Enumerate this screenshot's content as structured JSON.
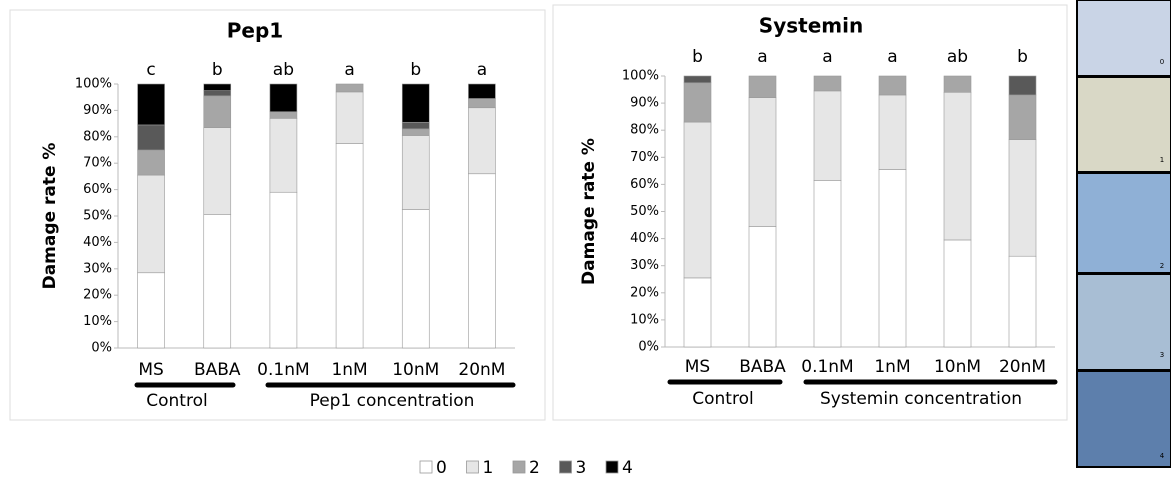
{
  "chart_data": [
    {
      "type": "stacked_bar",
      "title": "Pep1",
      "y_label": "Damage rate %",
      "categories": [
        "MS",
        "BABA",
        "0.1nM",
        "1nM",
        "10nM",
        "20nM"
      ],
      "annotations": [
        "c",
        "b",
        "ab",
        "a",
        "b",
        "a"
      ],
      "group_labels": [
        "Control",
        "Pep1 concentration"
      ],
      "series": [
        {
          "name": "0",
          "color": "#ffffff",
          "values": [
            28.5,
            50.5,
            59,
            77.5,
            52.5,
            66
          ]
        },
        {
          "name": "1",
          "color": "#e6e6e6",
          "values": [
            37,
            33,
            28,
            19.5,
            28,
            25
          ]
        },
        {
          "name": "2",
          "color": "#a6a6a6",
          "values": [
            9.5,
            12,
            2.5,
            3,
            2.5,
            3.5
          ]
        },
        {
          "name": "3",
          "color": "#595959",
          "values": [
            9.5,
            2,
            0,
            0,
            2.5,
            0
          ]
        },
        {
          "name": "4",
          "color": "#000000",
          "values": [
            15.5,
            2.5,
            10.5,
            0,
            14.5,
            5.5
          ]
        }
      ],
      "ylim": [
        0,
        100
      ],
      "yticks": [
        {
          "value": 0,
          "label": "0%"
        },
        {
          "value": 10,
          "label": "10%"
        },
        {
          "value": 20,
          "label": "20%"
        },
        {
          "value": 30,
          "label": "30%"
        },
        {
          "value": 40,
          "label": "40%"
        },
        {
          "value": 50,
          "label": "50%"
        },
        {
          "value": 60,
          "label": "60%"
        },
        {
          "value": 70,
          "label": "70%"
        },
        {
          "value": 80,
          "label": "80%"
        },
        {
          "value": 90,
          "label": "90%"
        },
        {
          "value": 100,
          "label": "100%"
        }
      ]
    },
    {
      "type": "stacked_bar",
      "title": "Systemin",
      "y_label": "Damage rate %",
      "categories": [
        "MS",
        "BABA",
        "0.1nM",
        "1nM",
        "10nM",
        "20nM"
      ],
      "annotations": [
        "b",
        "a",
        "a",
        "a",
        "ab",
        "b"
      ],
      "group_labels": [
        "Control",
        "Systemin concentration"
      ],
      "series": [
        {
          "name": "0",
          "color": "#ffffff",
          "values": [
            25.5,
            44.5,
            61.5,
            65.5,
            39.5,
            33.5
          ]
        },
        {
          "name": "1",
          "color": "#e6e6e6",
          "values": [
            57.5,
            47.5,
            33,
            27.5,
            54.5,
            43
          ]
        },
        {
          "name": "2",
          "color": "#a6a6a6",
          "values": [
            14.5,
            8,
            5.5,
            7,
            6,
            16.5
          ]
        },
        {
          "name": "3",
          "color": "#595959",
          "values": [
            2.5,
            0,
            0,
            0,
            0,
            7
          ]
        },
        {
          "name": "4",
          "color": "#000000",
          "values": [
            0,
            0,
            0,
            0,
            0,
            0
          ]
        }
      ],
      "ylim": [
        0,
        100
      ],
      "yticks": [
        {
          "value": 0,
          "label": "0%"
        },
        {
          "value": 10,
          "label": "10%"
        },
        {
          "value": 20,
          "label": "20%"
        },
        {
          "value": 30,
          "label": "30%"
        },
        {
          "value": 40,
          "label": "40%"
        },
        {
          "value": 50,
          "label": "50%"
        },
        {
          "value": 60,
          "label": "60%"
        },
        {
          "value": 70,
          "label": "70%"
        },
        {
          "value": 80,
          "label": "80%"
        },
        {
          "value": 90,
          "label": "90%"
        },
        {
          "value": 100,
          "label": "100%"
        }
      ]
    }
  ],
  "leaf_panels": [
    "0",
    "1",
    "2",
    "3",
    "4"
  ]
}
